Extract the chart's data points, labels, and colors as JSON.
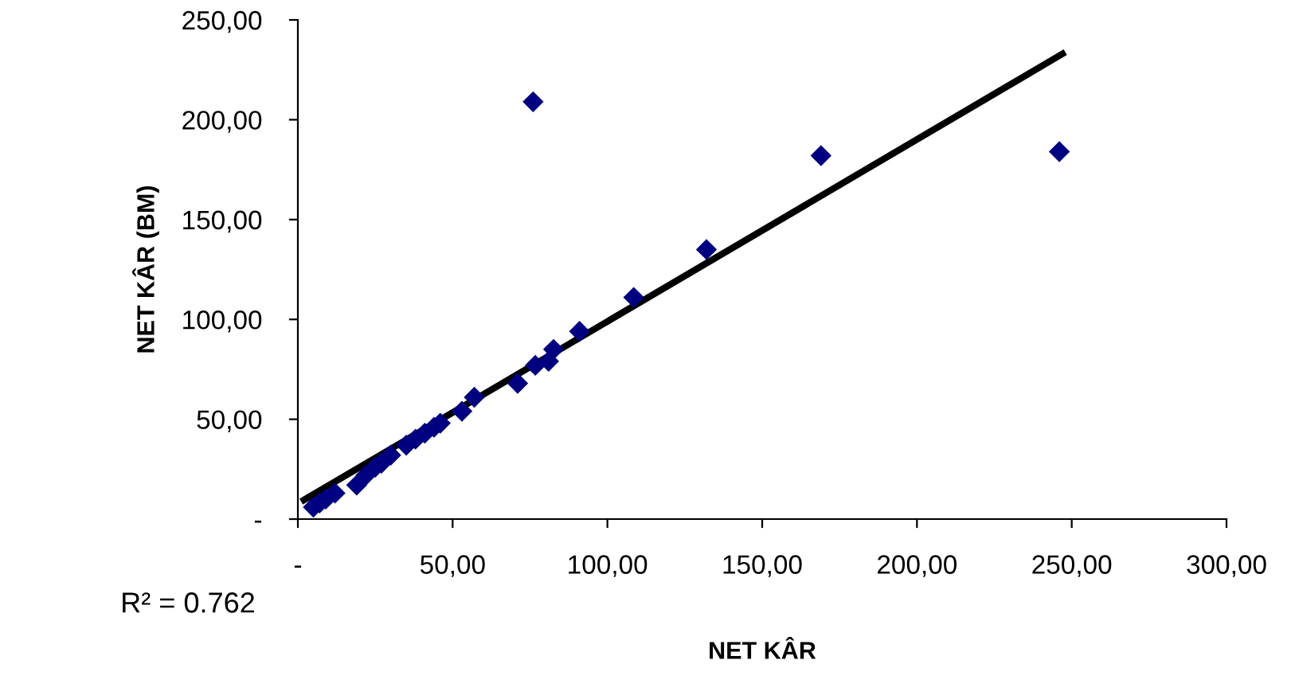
{
  "chart_data": {
    "type": "scatter",
    "xlabel": "NET KÂR",
    "ylabel": "NET KÂR (BM)",
    "xlim": [
      0,
      300
    ],
    "ylim": [
      0,
      250
    ],
    "xticks": [
      {
        "value": 0,
        "label": "-"
      },
      {
        "value": 50,
        "label": "50,00"
      },
      {
        "value": 100,
        "label": "100,00"
      },
      {
        "value": 150,
        "label": "150,00"
      },
      {
        "value": 200,
        "label": "200,00"
      },
      {
        "value": 250,
        "label": "250,00"
      },
      {
        "value": 300,
        "label": "300,00"
      }
    ],
    "yticks": [
      {
        "value": 0,
        "label": "-"
      },
      {
        "value": 50,
        "label": "50,00"
      },
      {
        "value": 100,
        "label": "100,00"
      },
      {
        "value": 150,
        "label": "150,00"
      },
      {
        "value": 200,
        "label": "200,00"
      },
      {
        "value": 250,
        "label": "250,00"
      }
    ],
    "grid": false,
    "marker": "diamond",
    "annotations": [
      "R² = 0.762"
    ],
    "series": [
      {
        "color": "#000080",
        "x": [
          5,
          7,
          9,
          12,
          19,
          22,
          25,
          27,
          30,
          35,
          38,
          41,
          44,
          46,
          53,
          57,
          71,
          76.7,
          81,
          82.6,
          91,
          108.5,
          132,
          169,
          246,
          76
        ],
        "values": [
          6,
          8,
          10,
          13,
          17,
          22,
          26,
          28,
          32,
          37,
          40,
          43,
          46,
          48,
          54,
          61,
          68,
          77,
          79,
          85,
          94,
          111,
          135,
          182,
          184,
          209
        ]
      },
      {
        "type": "line",
        "color": "#000000",
        "marker": "none",
        "x": [
          2,
          247
        ],
        "values": [
          9.6,
          233
        ]
      }
    ]
  }
}
